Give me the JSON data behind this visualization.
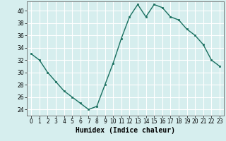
{
  "x": [
    0,
    1,
    2,
    3,
    4,
    5,
    6,
    7,
    8,
    9,
    10,
    11,
    12,
    13,
    14,
    15,
    16,
    17,
    18,
    19,
    20,
    21,
    22,
    23
  ],
  "y": [
    33,
    32,
    30,
    28.5,
    27,
    26,
    25,
    24,
    24.5,
    28,
    31.5,
    35.5,
    39,
    41,
    39,
    41,
    40.5,
    39,
    38.5,
    37,
    36,
    34.5,
    32,
    31
  ],
  "line_color": "#1a7060",
  "marker_color": "#1a7060",
  "bg_color": "#d6eeee",
  "grid_color": "#ffffff",
  "xlabel": "Humidex (Indice chaleur)",
  "xlim": [
    -0.5,
    23.5
  ],
  "ylim": [
    23,
    41.5
  ],
  "yticks": [
    24,
    26,
    28,
    30,
    32,
    34,
    36,
    38,
    40
  ],
  "xticks": [
    0,
    1,
    2,
    3,
    4,
    5,
    6,
    7,
    8,
    9,
    10,
    11,
    12,
    13,
    14,
    15,
    16,
    17,
    18,
    19,
    20,
    21,
    22,
    23
  ],
  "tick_label_fontsize": 5.5,
  "xlabel_fontsize": 7.0
}
